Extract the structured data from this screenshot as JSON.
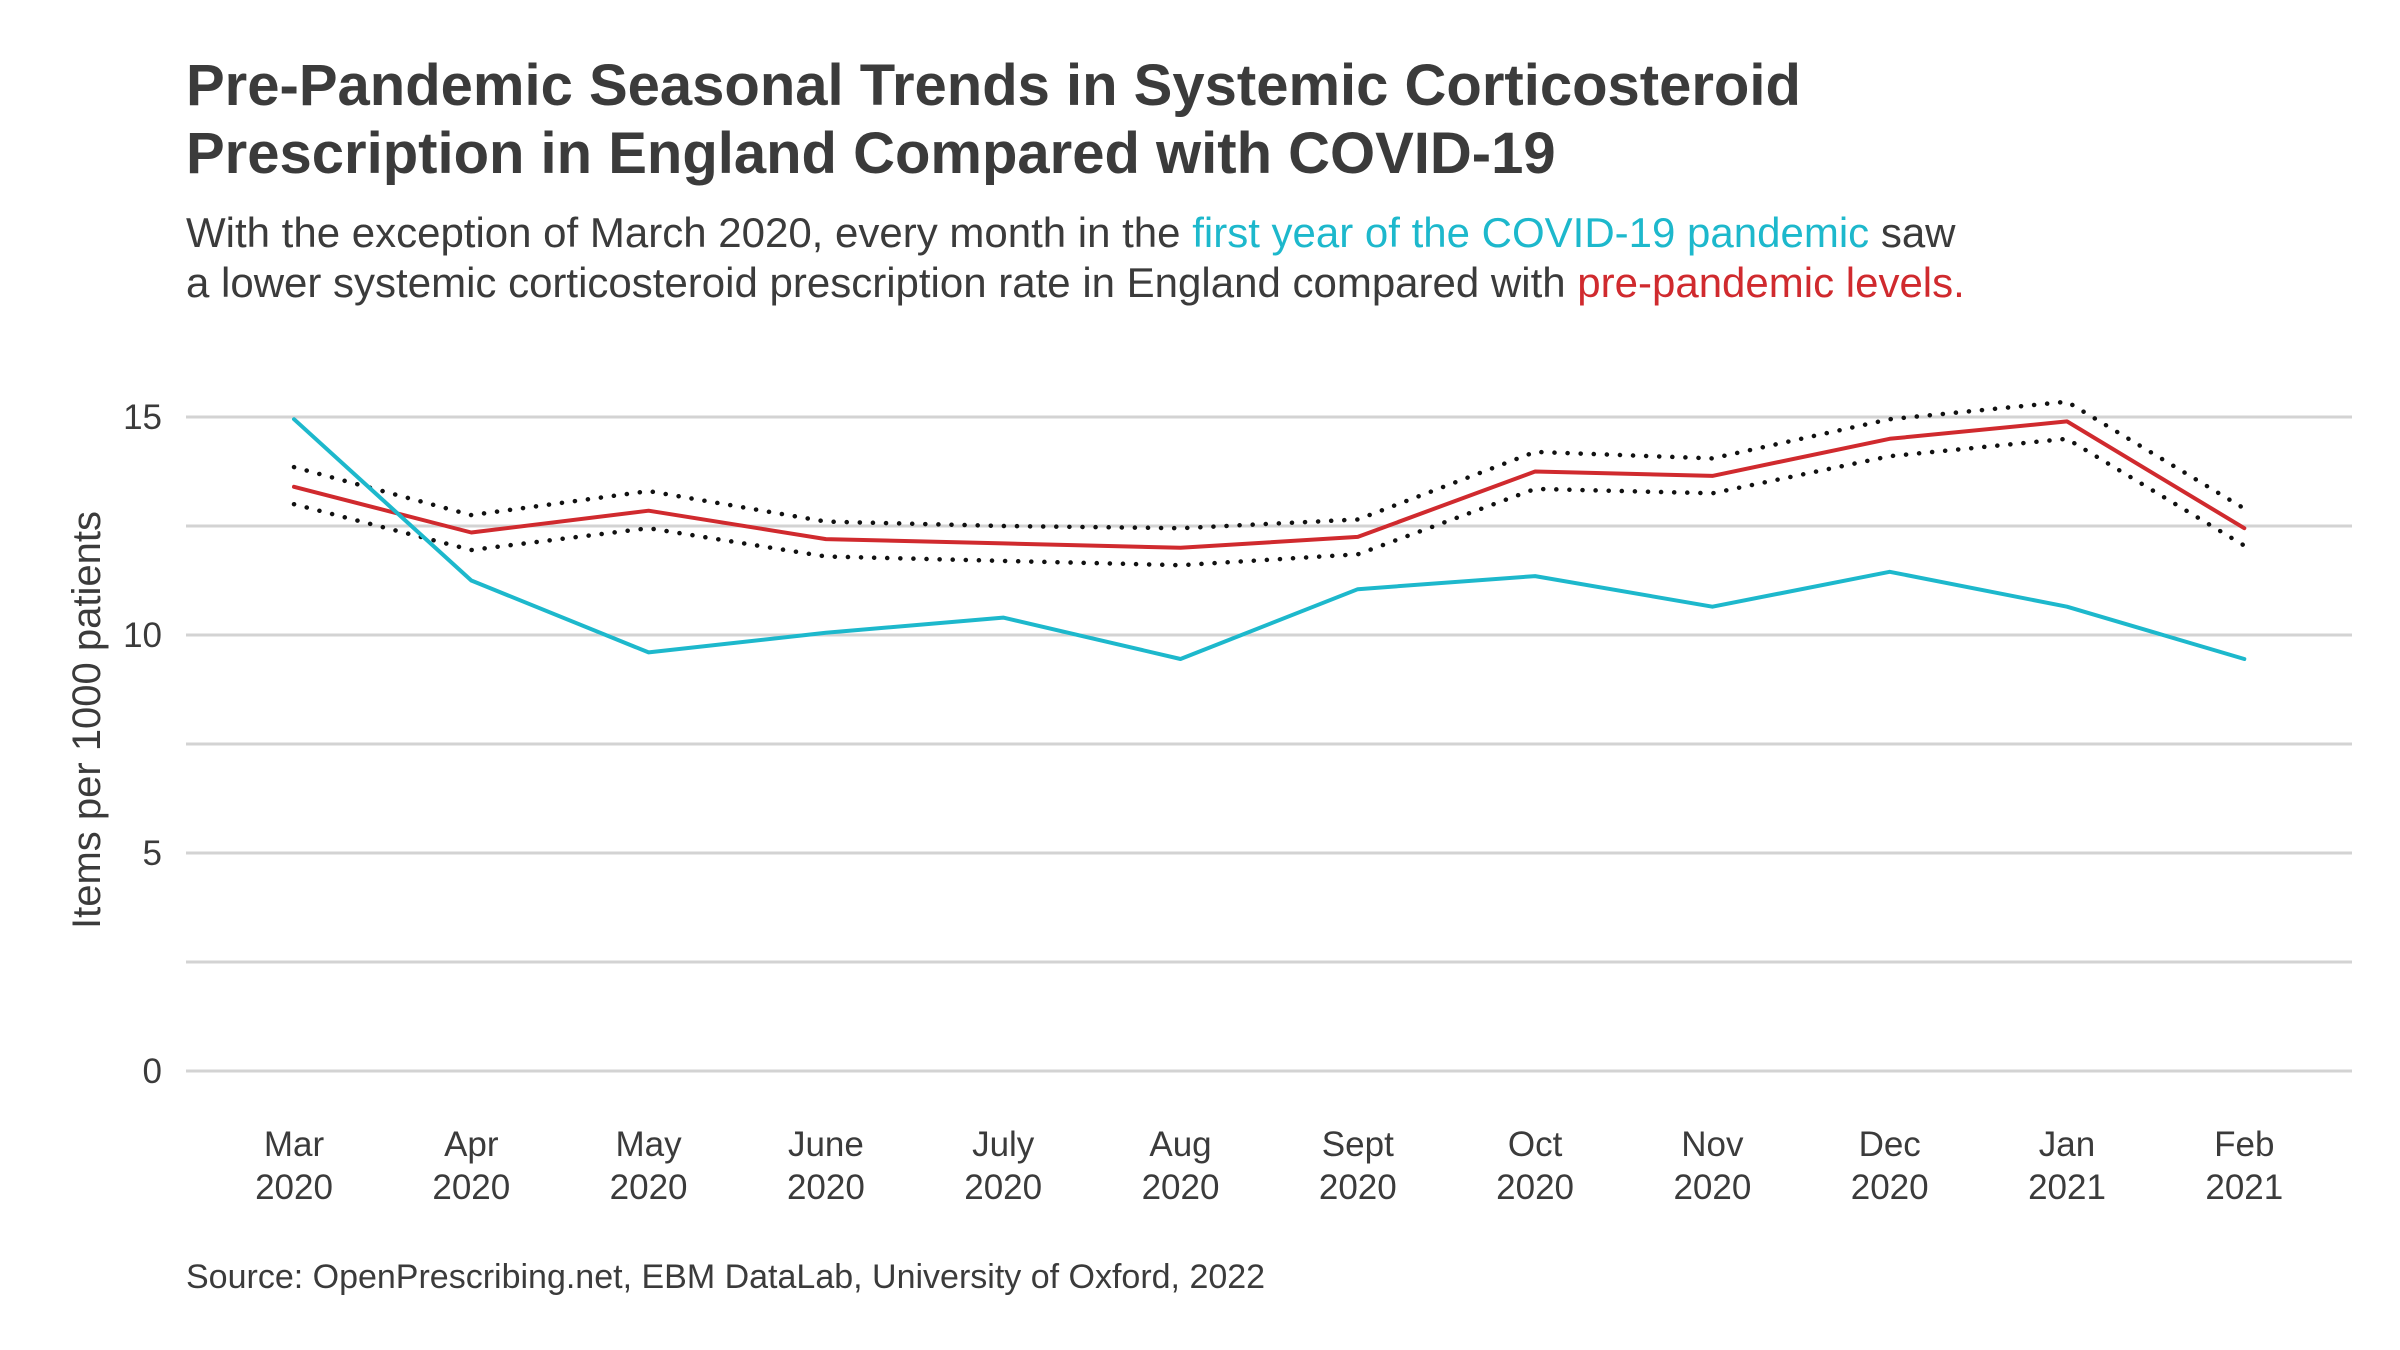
{
  "title_line1": "Pre-Pandemic Seasonal Trends in Systemic Corticosteroid",
  "title_line2": "Prescription in England Compared with COVID-19",
  "subtitle": {
    "part1": "With the exception of March 2020, every month in the ",
    "highlight_covid": "first year of the COVID-19 pandemic",
    "part2": " saw",
    "part3": "a lower systemic corticosteroid prescription rate in England compared with ",
    "highlight_pre": "pre-pandemic levels."
  },
  "caption": "Source: OpenPrescribing.net, EBM DataLab, University of Oxford, 2022",
  "colors": {
    "covid": "#1db8cc",
    "pre_pandemic": "#d02a2e",
    "interval": "#111111",
    "grid": "#d3d3d3",
    "text": "#3b3b3b"
  },
  "chart_data": {
    "type": "line",
    "ylabel": "Items per 1000 patients",
    "xlabel": "",
    "ylim": [
      0,
      15.5
    ],
    "yticks": [
      0,
      5,
      10,
      15
    ],
    "grid": true,
    "legend": "none",
    "categories": [
      [
        "Mar",
        "2020"
      ],
      [
        "Apr",
        "2020"
      ],
      [
        "May",
        "2020"
      ],
      [
        "June",
        "2020"
      ],
      [
        "July",
        "2020"
      ],
      [
        "Aug",
        "2020"
      ],
      [
        "Sept",
        "2020"
      ],
      [
        "Oct",
        "2020"
      ],
      [
        "Nov",
        "2020"
      ],
      [
        "Dec",
        "2020"
      ],
      [
        "Jan",
        "2021"
      ],
      [
        "Feb",
        "2021"
      ]
    ],
    "series": [
      {
        "style": "dotted",
        "color": "#111111",
        "values": [
          13.85,
          12.75,
          13.3,
          12.6,
          12.5,
          12.45,
          12.65,
          14.2,
          14.05,
          14.95,
          15.35,
          12.9
        ]
      },
      {
        "style": "dotted",
        "color": "#111111",
        "values": [
          13.0,
          11.95,
          12.45,
          11.8,
          11.7,
          11.6,
          11.85,
          13.35,
          13.25,
          14.1,
          14.5,
          12.05
        ]
      },
      {
        "style": "solid",
        "color": "#d02a2e",
        "values": [
          13.4,
          12.35,
          12.85,
          12.2,
          12.1,
          12.0,
          12.25,
          13.75,
          13.65,
          14.5,
          14.9,
          12.45
        ]
      },
      {
        "style": "solid",
        "color": "#1db8cc",
        "values": [
          14.95,
          11.25,
          9.6,
          10.05,
          10.4,
          9.45,
          11.05,
          11.35,
          10.65,
          11.45,
          10.65,
          9.45
        ]
      }
    ]
  }
}
